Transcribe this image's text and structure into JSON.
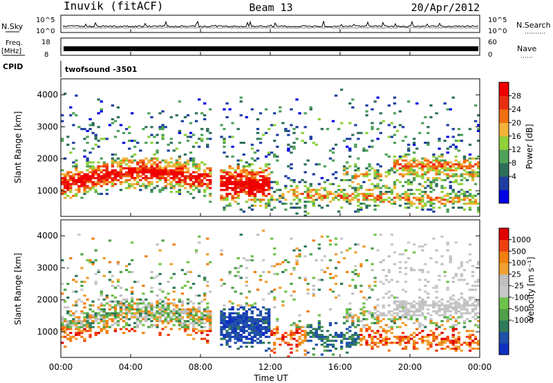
{
  "header": {
    "station": "Inuvik (fitACF)",
    "beam": "Beam 13",
    "date": "20/Apr/2012"
  },
  "status": {
    "nsky_label": "N.Sky",
    "nsky_ticks": [
      "10^5",
      "10^0"
    ],
    "nsearch_label": "N.Search",
    "nsearch_ticks": [
      "10^5",
      "10^0"
    ],
    "freq_label": "Freq.",
    "freq_unit": "[MHz]",
    "freq_ticks": [
      "18",
      "8"
    ],
    "nave_label": "Nave",
    "nave_ticks": [
      "60",
      "0"
    ],
    "cpid_label": "CPID",
    "cpid_value": "twofsound -3501"
  },
  "chart_data": [
    {
      "type": "heatmap",
      "name": "power",
      "ylabel": "Slant Range [km]",
      "yticks": [
        1000,
        2000,
        3000,
        4000
      ],
      "ylim": [
        200,
        4500
      ],
      "xlim": [
        0,
        24
      ],
      "colorbar": {
        "label": "Power [dB]",
        "ticks": [
          "28",
          "24",
          "20",
          "16",
          "12",
          "8",
          "4"
        ],
        "colors": [
          "#0000e6",
          "#1f3fa0",
          "#2f6f5a",
          "#4fa15a",
          "#8fd13a",
          "#f3b23a",
          "#f06f10",
          "#e83010",
          "#f00000"
        ]
      }
    },
    {
      "type": "heatmap",
      "name": "velocity",
      "ylabel": "Slant Range [km]",
      "yticks": [
        1000,
        2000,
        3000,
        4000
      ],
      "ylim": [
        200,
        4500
      ],
      "xlim": [
        0,
        24
      ],
      "xlabel": "Time UT",
      "xticks": [
        "00:00",
        "04:00",
        "08:00",
        "12:00",
        "16:00",
        "20:00",
        "00:00"
      ],
      "colorbar": {
        "label": "Velocity [m s⁻¹]",
        "ticks": [
          "1000",
          "500",
          "100",
          "25",
          "-25",
          "-100",
          "-500",
          "-1000"
        ],
        "colors": [
          "#1030c0",
          "#2050a8",
          "#2f7a5a",
          "#4fa04a",
          "#6fc24a",
          "#c8c8c8",
          "#c0c0c0",
          "#f0a030",
          "#f07f10",
          "#f04010",
          "#e00000"
        ]
      }
    }
  ]
}
